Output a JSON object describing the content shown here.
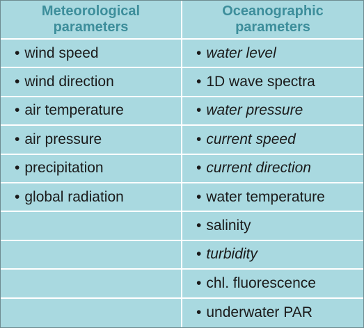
{
  "table": {
    "headers": [
      "Meteorological parameters",
      "Oceanographic parameters"
    ],
    "columns": [
      {
        "items": [
          {
            "text": "wind speed",
            "italic": false
          },
          {
            "text": "wind direction",
            "italic": false
          },
          {
            "text": "air temperature",
            "italic": false
          },
          {
            "text": "air pressure",
            "italic": false
          },
          {
            "text": "precipitation",
            "italic": false
          },
          {
            "text": "global radiation",
            "italic": false
          }
        ]
      },
      {
        "items": [
          {
            "text": "water level",
            "italic": true
          },
          {
            "text": "1D wave spectra",
            "italic": false
          },
          {
            "text": "water pressure",
            "italic": true
          },
          {
            "text": "current speed",
            "italic": true
          },
          {
            "text": "current direction",
            "italic": true
          },
          {
            "text": "water temperature",
            "italic": false
          },
          {
            "text": "salinity",
            "italic": false
          },
          {
            "text": "turbidity",
            "italic": true
          },
          {
            "text": "chl. fluorescence",
            "italic": false
          },
          {
            "text": "underwater PAR",
            "italic": false
          }
        ]
      }
    ]
  }
}
